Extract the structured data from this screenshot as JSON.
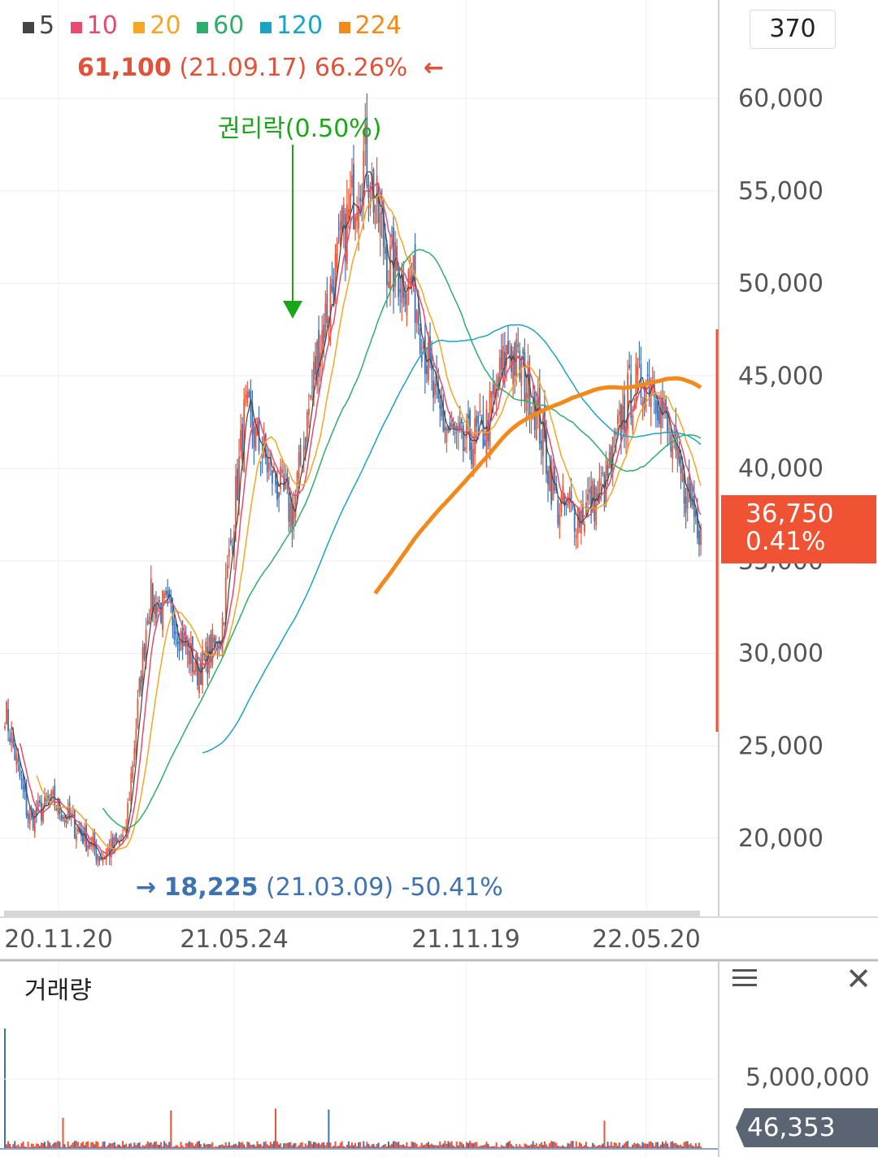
{
  "legend": [
    {
      "label": "5",
      "color": "#444444"
    },
    {
      "label": "10",
      "color": "#e84a6f"
    },
    {
      "label": "20",
      "color": "#f5a623"
    },
    {
      "label": "60",
      "color": "#2fae6b"
    },
    {
      "label": "120",
      "color": "#1ba3c6"
    },
    {
      "label": "224",
      "color": "#f28a1b"
    }
  ],
  "period": "370",
  "high_annotation": {
    "value": "61,100",
    "date": "(21.09.17)",
    "pct": "66.26%",
    "arrow": "←"
  },
  "low_annotation": {
    "arrow": "→",
    "value": "18,225",
    "date": "(21.03.09)",
    "pct": "-50.41%"
  },
  "rights_event": "권리락(0.50%)",
  "current_price": {
    "value": "36,750",
    "pct": "0.41%"
  },
  "volume_panel": {
    "title": "거래량",
    "tick": "5,000,000",
    "current": "46,353"
  },
  "colors": {
    "up": "#ef5334",
    "down": "#3f72b0",
    "current_tag": "#ef5334",
    "volume_tag": "#5b6473",
    "grid": "#eeeeee"
  },
  "chart_data": {
    "type": "candlestick",
    "y_ticks": [
      "20,000",
      "25,000",
      "30,000",
      "35,000",
      "40,000",
      "45,000",
      "50,000",
      "55,000",
      "60,000"
    ],
    "ylim": [
      16000,
      63000
    ],
    "x_ticks": [
      "20.11.20",
      "21.05.24",
      "21.11.19",
      "22.05.20"
    ],
    "close_trend": [
      {
        "x": "20.11",
        "y": 27000
      },
      {
        "x": "20.12",
        "y": 21000
      },
      {
        "x": "21.01",
        "y": 22000
      },
      {
        "x": "21.02",
        "y": 20500
      },
      {
        "x": "21.03",
        "y": 19000
      },
      {
        "x": "21.03b",
        "y": 20000
      },
      {
        "x": "21.04",
        "y": 33000
      },
      {
        "x": "21.05",
        "y": 32000
      },
      {
        "x": "21.05b",
        "y": 29000
      },
      {
        "x": "21.06",
        "y": 31000
      },
      {
        "x": "21.07",
        "y": 43000
      },
      {
        "x": "21.07b",
        "y": 40000
      },
      {
        "x": "21.08",
        "y": 37500
      },
      {
        "x": "21.08b",
        "y": 46000
      },
      {
        "x": "21.09",
        "y": 52000
      },
      {
        "x": "21.09b",
        "y": 57000
      },
      {
        "x": "21.10",
        "y": 51000
      },
      {
        "x": "21.10b",
        "y": 50000
      },
      {
        "x": "21.11",
        "y": 43000
      },
      {
        "x": "21.12",
        "y": 41000
      },
      {
        "x": "22.01",
        "y": 42000
      },
      {
        "x": "22.01b",
        "y": 46500
      },
      {
        "x": "22.02",
        "y": 44000
      },
      {
        "x": "22.03",
        "y": 38000
      },
      {
        "x": "22.04",
        "y": 37500
      },
      {
        "x": "22.05",
        "y": 39000
      },
      {
        "x": "22.05b",
        "y": 44000
      },
      {
        "x": "22.06",
        "y": 45000
      },
      {
        "x": "22.06b",
        "y": 40000
      },
      {
        "x": "22.07",
        "y": 36750
      }
    ]
  }
}
